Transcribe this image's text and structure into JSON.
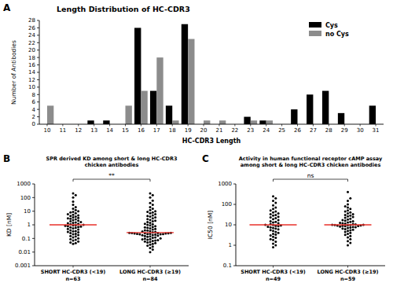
{
  "chart_data": [
    {
      "type": "bar",
      "panel": "A",
      "title": "Length Distribution of HC-CDR3",
      "x_label": "HC-CDR3 Length",
      "y_label": "Number of Antibodies",
      "categories": [
        "10",
        "11",
        "12",
        "13",
        "14",
        "15",
        "16",
        "17",
        "18",
        "19",
        "20",
        "21",
        "22",
        "23",
        "24",
        "25",
        "26",
        "27",
        "28",
        "29",
        "30",
        "31"
      ],
      "series": [
        {
          "name": "Cys",
          "color": "#000000",
          "values": [
            0,
            0,
            0,
            1,
            1,
            0,
            26,
            9,
            5,
            27,
            0,
            0,
            0,
            2,
            1,
            0,
            4,
            8,
            9,
            3,
            0,
            5
          ]
        },
        {
          "name": "no Cys",
          "color": "#8c8c8c",
          "values": [
            5,
            0,
            0,
            0,
            0,
            5,
            9,
            18,
            1,
            23,
            1,
            1,
            0,
            1,
            1,
            0,
            0,
            0,
            0,
            0,
            0,
            0
          ]
        }
      ],
      "ylim": [
        0,
        28
      ],
      "yticks": [
        0,
        2,
        4,
        6,
        8,
        10,
        12,
        14,
        16,
        18,
        20,
        22,
        24,
        26,
        28
      ],
      "legend": "top-right",
      "grid": false
    },
    {
      "type": "strip",
      "panel": "B",
      "title": "SPR derived KD among short & long HC-CDR3\nchicken antibodies",
      "y_label": "KD [nM]",
      "categories": [
        "SHORT HC-CDR3 (<19)",
        "LONG HC-CDR3 (≥19)"
      ],
      "n_labels": [
        "n=63",
        "n=84"
      ],
      "values": [
        [
          0.04,
          0.045,
          0.05,
          0.06,
          0.07,
          0.08,
          0.09,
          0.1,
          0.12,
          0.14,
          0.15,
          0.18,
          0.2,
          0.22,
          0.25,
          0.28,
          0.3,
          0.33,
          0.35,
          0.4,
          0.45,
          0.5,
          0.55,
          0.6,
          0.65,
          0.7,
          0.75,
          0.8,
          0.85,
          0.9,
          0.95,
          1,
          1.1,
          1.2,
          1.3,
          1.4,
          1.5,
          1.6,
          1.8,
          2,
          2.2,
          2.5,
          2.8,
          3,
          3.2,
          3.5,
          4,
          4.5,
          5,
          5.5,
          6,
          7,
          8,
          9,
          10,
          12,
          15,
          20,
          30,
          50,
          100,
          150,
          200
        ],
        [
          0.01,
          0.015,
          0.02,
          0.025,
          0.03,
          0.035,
          0.04,
          0.045,
          0.05,
          0.055,
          0.06,
          0.065,
          0.07,
          0.075,
          0.08,
          0.085,
          0.09,
          0.095,
          0.1,
          0.11,
          0.12,
          0.13,
          0.14,
          0.15,
          0.16,
          0.17,
          0.18,
          0.19,
          0.2,
          0.2,
          0.21,
          0.21,
          0.22,
          0.22,
          0.23,
          0.23,
          0.24,
          0.24,
          0.25,
          0.25,
          0.26,
          0.26,
          0.28,
          0.3,
          0.32,
          0.35,
          0.38,
          0.4,
          0.45,
          0.5,
          0.55,
          0.6,
          0.65,
          0.7,
          0.8,
          0.9,
          1,
          1.1,
          1.2,
          1.4,
          1.6,
          1.8,
          2,
          2.3,
          2.6,
          3,
          3.5,
          4,
          4.5,
          5,
          6,
          7,
          8,
          9,
          10,
          12,
          15,
          20,
          30,
          40,
          60,
          100,
          150,
          200
        ]
      ],
      "medians": [
        1,
        0.27
      ],
      "annotation": "**",
      "log": "y",
      "ylim": [
        0.001,
        1000
      ],
      "yticks": [
        0.001,
        0.01,
        0.1,
        1,
        10,
        100,
        1000
      ],
      "color": "#000000",
      "marker": "circle"
    },
    {
      "type": "strip",
      "panel": "C",
      "title": "Activity in human functional receptor cAMP assay\namong short & long HC-CDR3 chicken antibodies",
      "y_label": "IC50 [nM]",
      "categories": [
        "SHORT HC-CDR3 (<19)",
        "LONG HC-CDR3 (≥19)"
      ],
      "n_labels": [
        "n=49",
        "n=59"
      ],
      "values": [
        [
          0.8,
          1,
          1.2,
          1.5,
          1.8,
          2,
          2.3,
          2.6,
          3,
          3.3,
          3.6,
          4,
          4.5,
          5,
          5.5,
          6,
          6.5,
          7,
          7.5,
          8,
          8.5,
          9,
          9.3,
          9.7,
          10,
          11,
          12,
          13,
          14,
          15,
          17,
          19,
          21,
          23,
          25,
          28,
          30,
          33,
          36,
          40,
          45,
          50,
          60,
          70,
          90,
          120,
          150,
          200,
          250
        ],
        [
          1,
          1.3,
          1.6,
          2,
          2.4,
          2.8,
          3.2,
          3.6,
          4,
          4.5,
          5,
          5.4,
          5.8,
          6.2,
          6.6,
          7,
          7.3,
          7.6,
          7.9,
          8.2,
          8.5,
          8.7,
          8.9,
          9.1,
          9.3,
          9.5,
          9.7,
          9.8,
          9.9,
          10,
          10.5,
          11,
          11.5,
          12,
          12.5,
          13,
          14,
          15,
          16,
          17,
          18,
          20,
          22,
          24,
          26,
          28,
          30,
          33,
          36,
          40,
          45,
          50,
          60,
          70,
          80,
          100,
          150,
          200,
          400
        ]
      ],
      "medians": [
        10,
        10
      ],
      "annotation": "ns",
      "log": "y",
      "ylim": [
        0.1,
        1000
      ],
      "yticks": [
        0.1,
        1,
        10,
        100,
        1000
      ],
      "color": "#000000",
      "marker": "circle"
    }
  ]
}
